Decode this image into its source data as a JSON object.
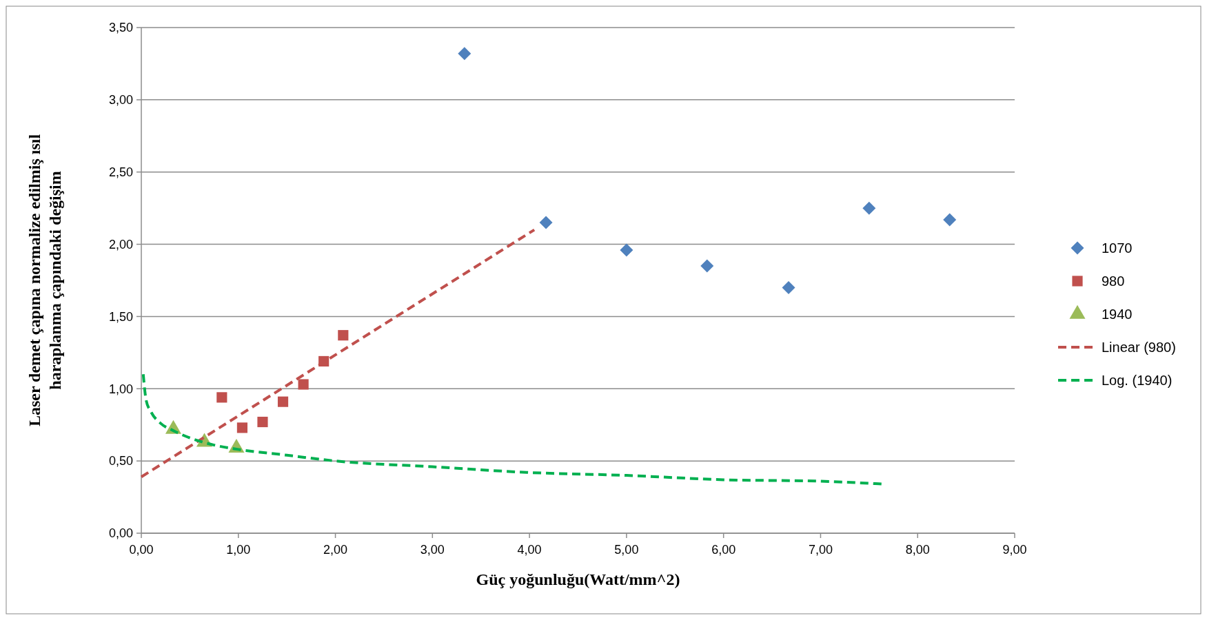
{
  "chart_data": {
    "type": "scatter",
    "xlabel": "Güç yoğunluğu(Watt/mm^2)",
    "ylabel": "Laser demet çapına normalize edilmiş ısıl haraplanma çapındaki değişim",
    "xlim": [
      0,
      9
    ],
    "ylim": [
      0,
      3.5
    ],
    "xticks": [
      {
        "value": 0,
        "label": "0,00"
      },
      {
        "value": 1,
        "label": "1,00"
      },
      {
        "value": 2,
        "label": "2,00"
      },
      {
        "value": 3,
        "label": "3,00"
      },
      {
        "value": 4,
        "label": "4,00"
      },
      {
        "value": 5,
        "label": "5,00"
      },
      {
        "value": 6,
        "label": "6,00"
      },
      {
        "value": 7,
        "label": "7,00"
      },
      {
        "value": 8,
        "label": "8,00"
      },
      {
        "value": 9,
        "label": "9,00"
      }
    ],
    "yticks": [
      {
        "value": 0,
        "label": "0,00"
      },
      {
        "value": 0.5,
        "label": "0,50"
      },
      {
        "value": 1,
        "label": "1,00"
      },
      {
        "value": 1.5,
        "label": "1,50"
      },
      {
        "value": 2,
        "label": "2,00"
      },
      {
        "value": 2.5,
        "label": "2,50"
      },
      {
        "value": 3,
        "label": "3,00"
      },
      {
        "value": 3.5,
        "label": "3,50"
      }
    ],
    "grid": "y",
    "legend": "right",
    "series": [
      {
        "name": "1070",
        "marker": "diamond",
        "color": "#4f81bd",
        "x": [
          3.33,
          4.17,
          5.0,
          5.83,
          6.67,
          7.5,
          8.33
        ],
        "values": [
          3.32,
          2.15,
          1.96,
          1.85,
          1.7,
          2.25,
          2.17
        ]
      },
      {
        "name": "980",
        "marker": "square",
        "color": "#c0504d",
        "x": [
          0.83,
          1.04,
          1.25,
          1.46,
          1.67,
          1.88,
          2.08
        ],
        "values": [
          0.94,
          0.73,
          0.77,
          0.91,
          1.03,
          1.19,
          1.37
        ]
      },
      {
        "name": "1940",
        "marker": "triangle",
        "color": "#9bbb59",
        "x": [
          0.33,
          0.65,
          0.98
        ],
        "values": [
          0.72,
          0.63,
          0.59
        ]
      },
      {
        "name": "Linear (980)",
        "type": "line",
        "line_style": "dashed",
        "color": "#c0504d",
        "x": [
          0,
          4.05
        ],
        "values": [
          0.39,
          2.1
        ]
      },
      {
        "name": "Log. (1940)",
        "type": "line",
        "line_style": "dashed",
        "color": "#00b050",
        "x": [
          0.02,
          0.05,
          0.1,
          0.2,
          0.33,
          0.5,
          0.75,
          1,
          1.5,
          2,
          3,
          4,
          5,
          6,
          7,
          7.65
        ],
        "values": [
          1.1,
          0.92,
          0.84,
          0.76,
          0.71,
          0.66,
          0.61,
          0.58,
          0.54,
          0.5,
          0.46,
          0.42,
          0.4,
          0.37,
          0.36,
          0.34
        ]
      }
    ]
  }
}
